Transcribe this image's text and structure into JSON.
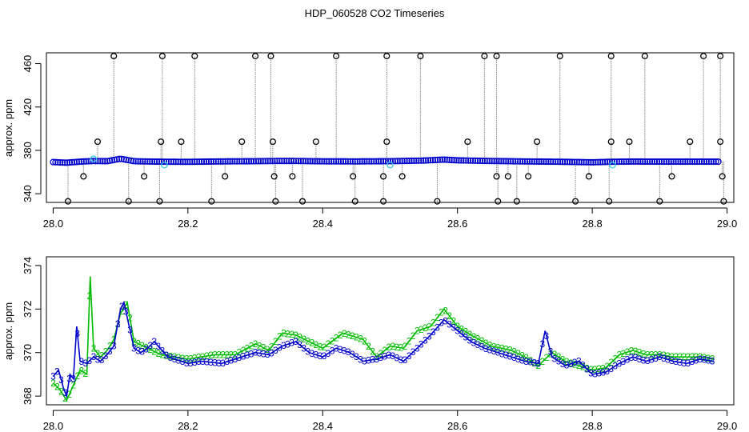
{
  "title": "HDP_060528  CO2 Timeseries",
  "colors": {
    "primary": "#0000cc",
    "secondary": "#00bb00",
    "outlier": "#000000",
    "highlight": "#33ccee",
    "spike": "#888888"
  },
  "chart_data": [
    {
      "type": "scatter",
      "ylabel": "approx. ppm",
      "xlim": [
        27.99,
        29.01
      ],
      "ylim": [
        332,
        470
      ],
      "xticks": [
        "28.0",
        "28.2",
        "28.4",
        "28.6",
        "28.8",
        "29.0"
      ],
      "yticks": [
        "340",
        "380",
        "420",
        "460"
      ],
      "baseline": [
        [
          28.0,
          369.2
        ],
        [
          28.02,
          368.6
        ],
        [
          28.04,
          369.6
        ],
        [
          28.06,
          370.2
        ],
        [
          28.08,
          370.0
        ],
        [
          28.1,
          372.3
        ],
        [
          28.12,
          370.0
        ],
        [
          28.15,
          369.6
        ],
        [
          28.2,
          369.4
        ],
        [
          28.25,
          369.8
        ],
        [
          28.3,
          370.0
        ],
        [
          28.33,
          370.2
        ],
        [
          28.36,
          370.2
        ],
        [
          28.4,
          369.9
        ],
        [
          28.45,
          369.8
        ],
        [
          28.5,
          370.0
        ],
        [
          28.55,
          370.6
        ],
        [
          28.58,
          371.5
        ],
        [
          28.6,
          370.8
        ],
        [
          28.65,
          370.2
        ],
        [
          28.7,
          369.8
        ],
        [
          28.75,
          369.5
        ],
        [
          28.8,
          369.0
        ],
        [
          28.83,
          369.5
        ],
        [
          28.86,
          369.7
        ],
        [
          28.9,
          369.6
        ],
        [
          28.95,
          369.6
        ],
        [
          28.99,
          369.6
        ]
      ],
      "outliers_high": [
        28.09,
        28.162,
        28.21,
        28.3,
        28.323,
        28.42,
        28.495,
        28.545,
        28.64,
        28.658,
        28.752,
        28.828,
        28.878,
        28.965,
        28.99
      ],
      "outliers_mid_high": [
        28.066,
        28.16,
        28.19,
        28.28,
        28.326,
        28.39,
        28.495,
        28.615,
        28.718,
        28.828,
        28.855,
        28.945,
        28.99
      ],
      "outliers_mid_low": [
        28.045,
        28.135,
        28.255,
        28.328,
        28.355,
        28.445,
        28.49,
        28.518,
        28.658,
        28.675,
        28.705,
        28.795,
        28.918,
        28.993
      ],
      "outliers_low": [
        28.022,
        28.112,
        28.158,
        28.235,
        28.33,
        28.37,
        28.448,
        28.49,
        28.57,
        28.66,
        28.688,
        28.775,
        28.825,
        28.9,
        28.995
      ],
      "outlier_values": {
        "high": 467,
        "mid_high": 388,
        "mid_low": 356,
        "low": 333
      },
      "highlighted": [
        [
          28.165,
          366.5
        ],
        [
          28.5,
          366.5
        ],
        [
          28.83,
          366.5
        ],
        [
          28.06,
          372
        ]
      ]
    },
    {
      "type": "line",
      "ylabel": "approx. ppm",
      "xlim": [
        27.99,
        29.01
      ],
      "ylim": [
        367.6,
        374.4
      ],
      "xticks": [
        "28.0",
        "28.2",
        "28.4",
        "28.6",
        "28.8",
        "29.0"
      ],
      "yticks": [
        "368",
        "370",
        "372",
        "374"
      ],
      "series": [
        {
          "marker": "3",
          "values": [
            [
              28.0,
              368.9
            ],
            [
              28.008,
              369.2
            ],
            [
              28.015,
              368.4
            ],
            [
              28.02,
              368.0
            ],
            [
              28.025,
              369.0
            ],
            [
              28.03,
              368.8
            ],
            [
              28.035,
              371.2
            ],
            [
              28.04,
              369.6
            ],
            [
              28.05,
              369.5
            ],
            [
              28.06,
              369.8
            ],
            [
              28.07,
              369.6
            ],
            [
              28.08,
              369.9
            ],
            [
              28.09,
              370.3
            ],
            [
              28.1,
              372.0
            ],
            [
              28.105,
              372.3
            ],
            [
              28.11,
              371.6
            ],
            [
              28.12,
              370.2
            ],
            [
              28.13,
              370.0
            ],
            [
              28.14,
              370.2
            ],
            [
              28.15,
              370.5
            ],
            [
              28.17,
              369.8
            ],
            [
              28.2,
              369.5
            ],
            [
              28.22,
              369.6
            ],
            [
              28.25,
              369.5
            ],
            [
              28.28,
              369.8
            ],
            [
              28.3,
              370.0
            ],
            [
              28.32,
              369.9
            ],
            [
              28.34,
              370.3
            ],
            [
              28.36,
              370.5
            ],
            [
              28.38,
              370.0
            ],
            [
              28.4,
              369.8
            ],
            [
              28.42,
              370.2
            ],
            [
              28.44,
              370.0
            ],
            [
              28.46,
              369.6
            ],
            [
              28.48,
              369.7
            ],
            [
              28.5,
              369.9
            ],
            [
              28.52,
              369.6
            ],
            [
              28.54,
              370.2
            ],
            [
              28.56,
              370.8
            ],
            [
              28.58,
              371.5
            ],
            [
              28.6,
              371.0
            ],
            [
              28.62,
              370.5
            ],
            [
              28.64,
              370.2
            ],
            [
              28.66,
              370.0
            ],
            [
              28.68,
              369.8
            ],
            [
              28.7,
              369.6
            ],
            [
              28.72,
              369.5
            ],
            [
              28.73,
              371.0
            ],
            [
              28.74,
              369.8
            ],
            [
              28.76,
              369.4
            ],
            [
              28.78,
              369.6
            ],
            [
              28.8,
              369.0
            ],
            [
              28.82,
              369.1
            ],
            [
              28.84,
              369.5
            ],
            [
              28.86,
              369.8
            ],
            [
              28.88,
              369.6
            ],
            [
              28.9,
              369.8
            ],
            [
              28.92,
              369.6
            ],
            [
              28.94,
              369.5
            ],
            [
              28.96,
              369.7
            ],
            [
              28.98,
              369.6
            ]
          ]
        },
        {
          "marker": "2",
          "values": [
            [
              28.0,
              368.6
            ],
            [
              28.01,
              368.3
            ],
            [
              28.02,
              367.8
            ],
            [
              28.03,
              368.5
            ],
            [
              28.04,
              369.2
            ],
            [
              28.05,
              369.0
            ],
            [
              28.055,
              373.5
            ],
            [
              28.06,
              370.2
            ],
            [
              28.07,
              369.8
            ],
            [
              28.08,
              370.1
            ],
            [
              28.09,
              370.6
            ],
            [
              28.1,
              371.8
            ],
            [
              28.11,
              372.3
            ],
            [
              28.12,
              370.5
            ],
            [
              28.14,
              370.2
            ],
            [
              28.16,
              369.9
            ],
            [
              28.2,
              369.7
            ],
            [
              28.24,
              369.9
            ],
            [
              28.27,
              369.9
            ],
            [
              28.3,
              370.4
            ],
            [
              28.32,
              370.1
            ],
            [
              28.34,
              370.9
            ],
            [
              28.36,
              370.8
            ],
            [
              28.38,
              370.5
            ],
            [
              28.4,
              370.2
            ],
            [
              28.43,
              370.9
            ],
            [
              28.46,
              370.6
            ],
            [
              28.48,
              369.8
            ],
            [
              28.5,
              370.3
            ],
            [
              28.52,
              370.2
            ],
            [
              28.54,
              371.0
            ],
            [
              28.56,
              371.2
            ],
            [
              28.58,
              372.0
            ],
            [
              28.6,
              371.2
            ],
            [
              28.62,
              370.8
            ],
            [
              28.65,
              370.3
            ],
            [
              28.68,
              370.1
            ],
            [
              28.7,
              369.8
            ],
            [
              28.72,
              369.4
            ],
            [
              28.74,
              370.0
            ],
            [
              28.76,
              369.6
            ],
            [
              28.8,
              369.2
            ],
            [
              28.82,
              369.3
            ],
            [
              28.84,
              369.9
            ],
            [
              28.86,
              370.1
            ],
            [
              28.88,
              369.9
            ],
            [
              28.9,
              369.9
            ],
            [
              28.92,
              369.8
            ],
            [
              28.94,
              369.8
            ],
            [
              28.96,
              369.8
            ],
            [
              28.98,
              369.7
            ]
          ]
        }
      ]
    }
  ]
}
